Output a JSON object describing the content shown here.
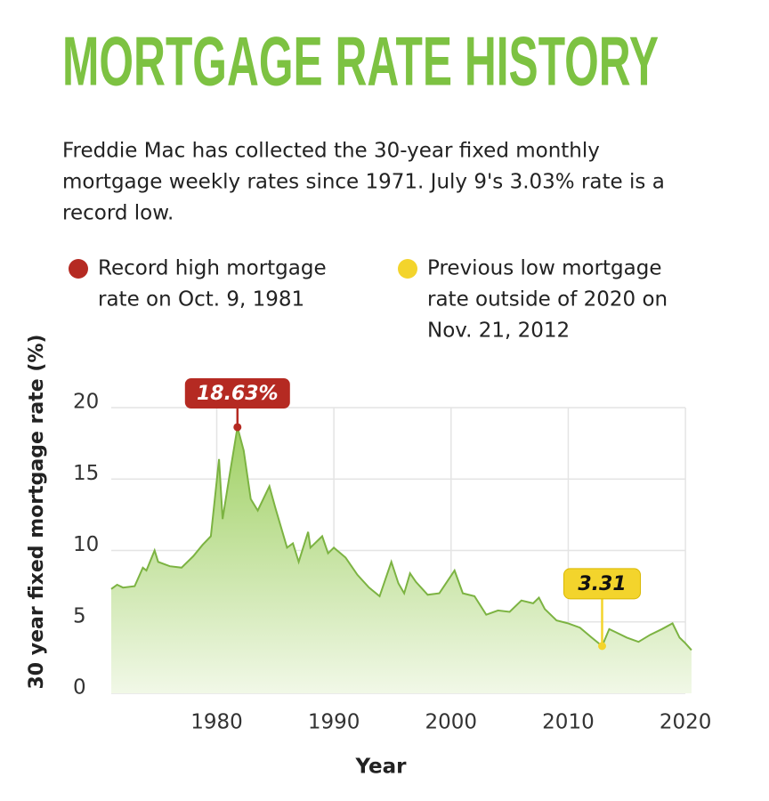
{
  "chart_data": {
    "type": "area",
    "title": "MORTGAGE RATE HISTORY",
    "subtitle_lines": [
      "Freddie Mac has collected the 30-year fixed monthly",
      "mortgage weekly rates since 1971. July 9's 3.03% rate is a",
      "record low."
    ],
    "xlabel": "Year",
    "ylabel": "30 year fixed mortgage rate (%)",
    "xlim": [
      1971,
      2020.6
    ],
    "xticks": [
      1980,
      1990,
      2000,
      2010,
      2020
    ],
    "ylim": [
      0,
      20
    ],
    "yticks": [
      0,
      5,
      10,
      15,
      20
    ],
    "grid": true,
    "series": [
      {
        "color": "#7cb342",
        "x": [
          1971,
          1971.5,
          1972,
          1973,
          1973.7,
          1974,
          1974.7,
          1975,
          1976,
          1977,
          1978,
          1978.8,
          1979.5,
          1980.2,
          1980.5,
          1981,
          1981.77,
          1982.3,
          1982.9,
          1983.5,
          1984.5,
          1985,
          1986,
          1986.5,
          1987,
          1987.8,
          1988,
          1989,
          1989.5,
          1990,
          1991,
          1992,
          1993,
          1993.9,
          1994.9,
          1995.5,
          1996,
          1996.5,
          1997,
          1998,
          1999,
          2000.3,
          2001,
          2002,
          2003,
          2004,
          2005,
          2006,
          2007,
          2007.5,
          2008,
          2009,
          2010,
          2011,
          2012,
          2012.89,
          2013.5,
          2014,
          2015,
          2016,
          2017,
          2018,
          2018.9,
          2019.5,
          2020,
          2020.52
        ],
        "values": [
          7.3,
          7.6,
          7.4,
          7.5,
          8.8,
          8.6,
          10.0,
          9.2,
          8.9,
          8.8,
          9.6,
          10.4,
          11.0,
          16.4,
          12.2,
          14.8,
          18.63,
          17.0,
          13.6,
          12.8,
          14.5,
          13.0,
          10.2,
          10.5,
          9.2,
          11.3,
          10.2,
          11.0,
          9.8,
          10.2,
          9.5,
          8.3,
          7.4,
          6.8,
          9.2,
          7.7,
          7.0,
          8.4,
          7.8,
          6.9,
          7.0,
          8.6,
          7.0,
          6.8,
          5.5,
          5.8,
          5.7,
          6.5,
          6.3,
          6.7,
          5.9,
          5.1,
          4.9,
          4.6,
          3.9,
          3.31,
          4.5,
          4.3,
          3.9,
          3.6,
          4.1,
          4.5,
          4.9,
          3.9,
          3.5,
          3.03
        ]
      }
    ],
    "annotations": [
      {
        "x": 1981.77,
        "y": 18.63,
        "label": "18.63%",
        "color": "#b52a22",
        "note_lines": [
          "Record high mortgage",
          "rate on Oct. 9, 1981"
        ]
      },
      {
        "x": 2012.89,
        "y": 3.31,
        "label": "3.31",
        "color": "#f3d42c",
        "note_lines": [
          "Previous low mortgage",
          "rate outside of 2020 on",
          "Nov. 21, 2012"
        ]
      }
    ]
  }
}
